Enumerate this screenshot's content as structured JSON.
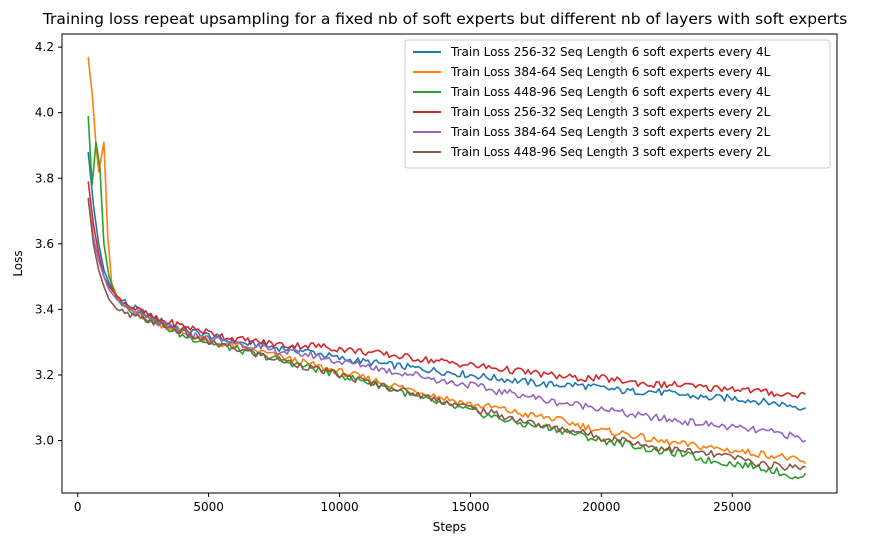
{
  "chart_data": {
    "type": "line",
    "title": "Training loss repeat upsampling for a fixed nb of soft experts but different nb of layers with soft experts",
    "xlabel": "Steps",
    "ylabel": "Loss",
    "xlim": [
      -600,
      29000
    ],
    "ylim": [
      2.84,
      4.24
    ],
    "xticks": [
      0,
      5000,
      10000,
      15000,
      20000,
      25000
    ],
    "xtick_labels": [
      "0",
      "5000",
      "10000",
      "15000",
      "20000",
      "25000"
    ],
    "yticks": [
      3.0,
      3.2,
      3.4,
      3.6,
      3.8,
      4.0,
      4.2
    ],
    "ytick_labels": [
      "3.0",
      "3.2",
      "3.4",
      "3.6",
      "3.8",
      "4.0",
      "4.2"
    ],
    "legend_position": "top-right",
    "series": [
      {
        "name": "Train Loss 256-32 Seq Length 6 soft experts every 4L",
        "color": "#1f77b4",
        "points": [
          [
            400,
            3.88
          ],
          [
            600,
            3.72
          ],
          [
            800,
            3.6
          ],
          [
            1000,
            3.52
          ],
          [
            1200,
            3.48
          ],
          [
            1500,
            3.44
          ],
          [
            2000,
            3.41
          ],
          [
            3000,
            3.37
          ],
          [
            4000,
            3.34
          ],
          [
            5000,
            3.32
          ],
          [
            6000,
            3.3
          ],
          [
            7000,
            3.29
          ],
          [
            8000,
            3.28
          ],
          [
            9000,
            3.27
          ],
          [
            10000,
            3.25
          ],
          [
            11000,
            3.24
          ],
          [
            12000,
            3.23
          ],
          [
            13000,
            3.22
          ],
          [
            14000,
            3.21
          ],
          [
            15000,
            3.2
          ],
          [
            16000,
            3.19
          ],
          [
            17000,
            3.18
          ],
          [
            18000,
            3.17
          ],
          [
            19000,
            3.17
          ],
          [
            20000,
            3.16
          ],
          [
            21000,
            3.15
          ],
          [
            22000,
            3.15
          ],
          [
            23000,
            3.14
          ],
          [
            24000,
            3.13
          ],
          [
            25000,
            3.13
          ],
          [
            26000,
            3.12
          ],
          [
            27000,
            3.11
          ],
          [
            27800,
            3.1
          ]
        ]
      },
      {
        "name": "Train Loss 384-64 Seq Length 6 soft experts every 4L",
        "color": "#ff7f0e",
        "points": [
          [
            400,
            4.17
          ],
          [
            550,
            4.06
          ],
          [
            700,
            3.9
          ],
          [
            800,
            3.82
          ],
          [
            1000,
            3.91
          ],
          [
            1150,
            3.62
          ],
          [
            1300,
            3.48
          ],
          [
            1600,
            3.42
          ],
          [
            2000,
            3.4
          ],
          [
            3000,
            3.36
          ],
          [
            4000,
            3.33
          ],
          [
            5000,
            3.3
          ],
          [
            6000,
            3.29
          ],
          [
            7000,
            3.27
          ],
          [
            8000,
            3.25
          ],
          [
            9000,
            3.23
          ],
          [
            10000,
            3.21
          ],
          [
            11000,
            3.19
          ],
          [
            12000,
            3.17
          ],
          [
            13000,
            3.15
          ],
          [
            14000,
            3.13
          ],
          [
            15000,
            3.11
          ],
          [
            16000,
            3.1
          ],
          [
            17000,
            3.08
          ],
          [
            18000,
            3.07
          ],
          [
            19000,
            3.05
          ],
          [
            20000,
            3.03
          ],
          [
            21000,
            3.02
          ],
          [
            22000,
            3.0
          ],
          [
            23000,
            2.99
          ],
          [
            24000,
            2.98
          ],
          [
            25000,
            2.97
          ],
          [
            26000,
            2.96
          ],
          [
            27000,
            2.95
          ],
          [
            27800,
            2.93
          ]
        ]
      },
      {
        "name": "Train Loss 448-96 Seq Length 6 soft experts every 4L",
        "color": "#2ca02c",
        "points": [
          [
            400,
            3.99
          ],
          [
            550,
            3.78
          ],
          [
            700,
            3.91
          ],
          [
            850,
            3.83
          ],
          [
            1000,
            3.6
          ],
          [
            1200,
            3.5
          ],
          [
            1500,
            3.43
          ],
          [
            2000,
            3.4
          ],
          [
            3000,
            3.36
          ],
          [
            4000,
            3.32
          ],
          [
            5000,
            3.3
          ],
          [
            6000,
            3.28
          ],
          [
            7000,
            3.26
          ],
          [
            8000,
            3.24
          ],
          [
            9000,
            3.22
          ],
          [
            10000,
            3.2
          ],
          [
            11000,
            3.18
          ],
          [
            12000,
            3.16
          ],
          [
            13000,
            3.13
          ],
          [
            14000,
            3.11
          ],
          [
            15000,
            3.09
          ],
          [
            16000,
            3.07
          ],
          [
            17000,
            3.05
          ],
          [
            18000,
            3.04
          ],
          [
            19000,
            3.02
          ],
          [
            20000,
            3.0
          ],
          [
            21000,
            2.99
          ],
          [
            22000,
            2.97
          ],
          [
            23000,
            2.96
          ],
          [
            24000,
            2.94
          ],
          [
            25000,
            2.93
          ],
          [
            26000,
            2.92
          ],
          [
            27000,
            2.9
          ],
          [
            27500,
            2.88
          ],
          [
            27800,
            2.9
          ]
        ]
      },
      {
        "name": "Train Loss 256-32 Seq Length 3 soft experts every 2L",
        "color": "#d62728",
        "points": [
          [
            400,
            3.79
          ],
          [
            600,
            3.66
          ],
          [
            800,
            3.57
          ],
          [
            1000,
            3.5
          ],
          [
            1200,
            3.47
          ],
          [
            1500,
            3.44
          ],
          [
            2000,
            3.41
          ],
          [
            3000,
            3.37
          ],
          [
            4000,
            3.35
          ],
          [
            5000,
            3.33
          ],
          [
            6000,
            3.31
          ],
          [
            7000,
            3.3
          ],
          [
            8000,
            3.29
          ],
          [
            9000,
            3.29
          ],
          [
            10000,
            3.28
          ],
          [
            11000,
            3.27
          ],
          [
            12000,
            3.26
          ],
          [
            13000,
            3.25
          ],
          [
            14000,
            3.24
          ],
          [
            15000,
            3.23
          ],
          [
            16000,
            3.22
          ],
          [
            17000,
            3.21
          ],
          [
            18000,
            3.2
          ],
          [
            19000,
            3.19
          ],
          [
            20000,
            3.19
          ],
          [
            21000,
            3.18
          ],
          [
            22000,
            3.17
          ],
          [
            23000,
            3.17
          ],
          [
            24000,
            3.16
          ],
          [
            25000,
            3.16
          ],
          [
            26000,
            3.15
          ],
          [
            27000,
            3.14
          ],
          [
            27800,
            3.14
          ]
        ]
      },
      {
        "name": "Train Loss 384-64 Seq Length 3 soft experts every 2L",
        "color": "#9467bd",
        "points": [
          [
            400,
            3.74
          ],
          [
            600,
            3.62
          ],
          [
            800,
            3.55
          ],
          [
            1000,
            3.5
          ],
          [
            1200,
            3.46
          ],
          [
            1500,
            3.43
          ],
          [
            2000,
            3.4
          ],
          [
            3000,
            3.36
          ],
          [
            4000,
            3.33
          ],
          [
            5000,
            3.31
          ],
          [
            6000,
            3.3
          ],
          [
            7000,
            3.28
          ],
          [
            8000,
            3.27
          ],
          [
            9000,
            3.26
          ],
          [
            10000,
            3.24
          ],
          [
            11000,
            3.23
          ],
          [
            12000,
            3.21
          ],
          [
            13000,
            3.2
          ],
          [
            14000,
            3.18
          ],
          [
            15000,
            3.17
          ],
          [
            16000,
            3.15
          ],
          [
            17000,
            3.14
          ],
          [
            18000,
            3.12
          ],
          [
            19000,
            3.11
          ],
          [
            20000,
            3.1
          ],
          [
            21000,
            3.08
          ],
          [
            22000,
            3.07
          ],
          [
            23000,
            3.06
          ],
          [
            24000,
            3.05
          ],
          [
            25000,
            3.04
          ],
          [
            26000,
            3.03
          ],
          [
            27000,
            3.02
          ],
          [
            27800,
            3.0
          ]
        ]
      },
      {
        "name": "Train Loss 448-96 Seq Length 3 soft experts every 2L",
        "color": "#8c564b",
        "points": [
          [
            400,
            3.74
          ],
          [
            600,
            3.6
          ],
          [
            800,
            3.52
          ],
          [
            1000,
            3.47
          ],
          [
            1200,
            3.43
          ],
          [
            1500,
            3.4
          ],
          [
            2000,
            3.38
          ],
          [
            3000,
            3.36
          ],
          [
            4000,
            3.33
          ],
          [
            5000,
            3.3
          ],
          [
            6000,
            3.28
          ],
          [
            7000,
            3.26
          ],
          [
            8000,
            3.24
          ],
          [
            9000,
            3.22
          ],
          [
            10000,
            3.2
          ],
          [
            11000,
            3.18
          ],
          [
            12000,
            3.16
          ],
          [
            13000,
            3.14
          ],
          [
            14000,
            3.12
          ],
          [
            15000,
            3.1
          ],
          [
            16000,
            3.08
          ],
          [
            17000,
            3.06
          ],
          [
            18000,
            3.04
          ],
          [
            19000,
            3.03
          ],
          [
            20000,
            3.01
          ],
          [
            21000,
            3.0
          ],
          [
            22000,
            2.98
          ],
          [
            23000,
            2.97
          ],
          [
            24000,
            2.96
          ],
          [
            25000,
            2.95
          ],
          [
            26000,
            2.93
          ],
          [
            27000,
            2.92
          ],
          [
            27800,
            2.92
          ]
        ]
      }
    ]
  }
}
